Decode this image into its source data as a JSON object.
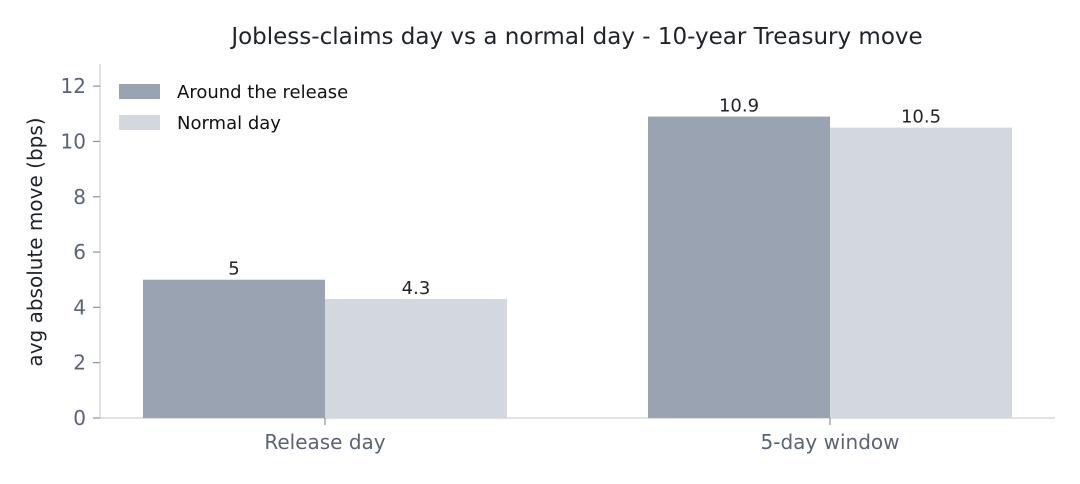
{
  "chart_data": {
    "type": "bar",
    "title": "Jobless-claims day vs a normal day - 10-year Treasury move",
    "xlabel": "",
    "ylabel": "avg absolute move (bps)",
    "categories": [
      "Release day",
      "5-day window"
    ],
    "series": [
      {
        "name": "Around the release",
        "values": [
          5,
          10.9
        ],
        "labels": [
          "5",
          "10.9"
        ],
        "color": "#9aa3b1"
      },
      {
        "name": "Normal day",
        "values": [
          4.3,
          10.5
        ],
        "labels": [
          "4.3",
          "10.5"
        ],
        "color": "#d3d8df"
      }
    ],
    "ylim": [
      0,
      12.8
    ],
    "yticks": [
      0,
      2,
      4,
      6,
      8,
      10,
      12
    ],
    "grid": false,
    "legend_position": "top-left"
  }
}
